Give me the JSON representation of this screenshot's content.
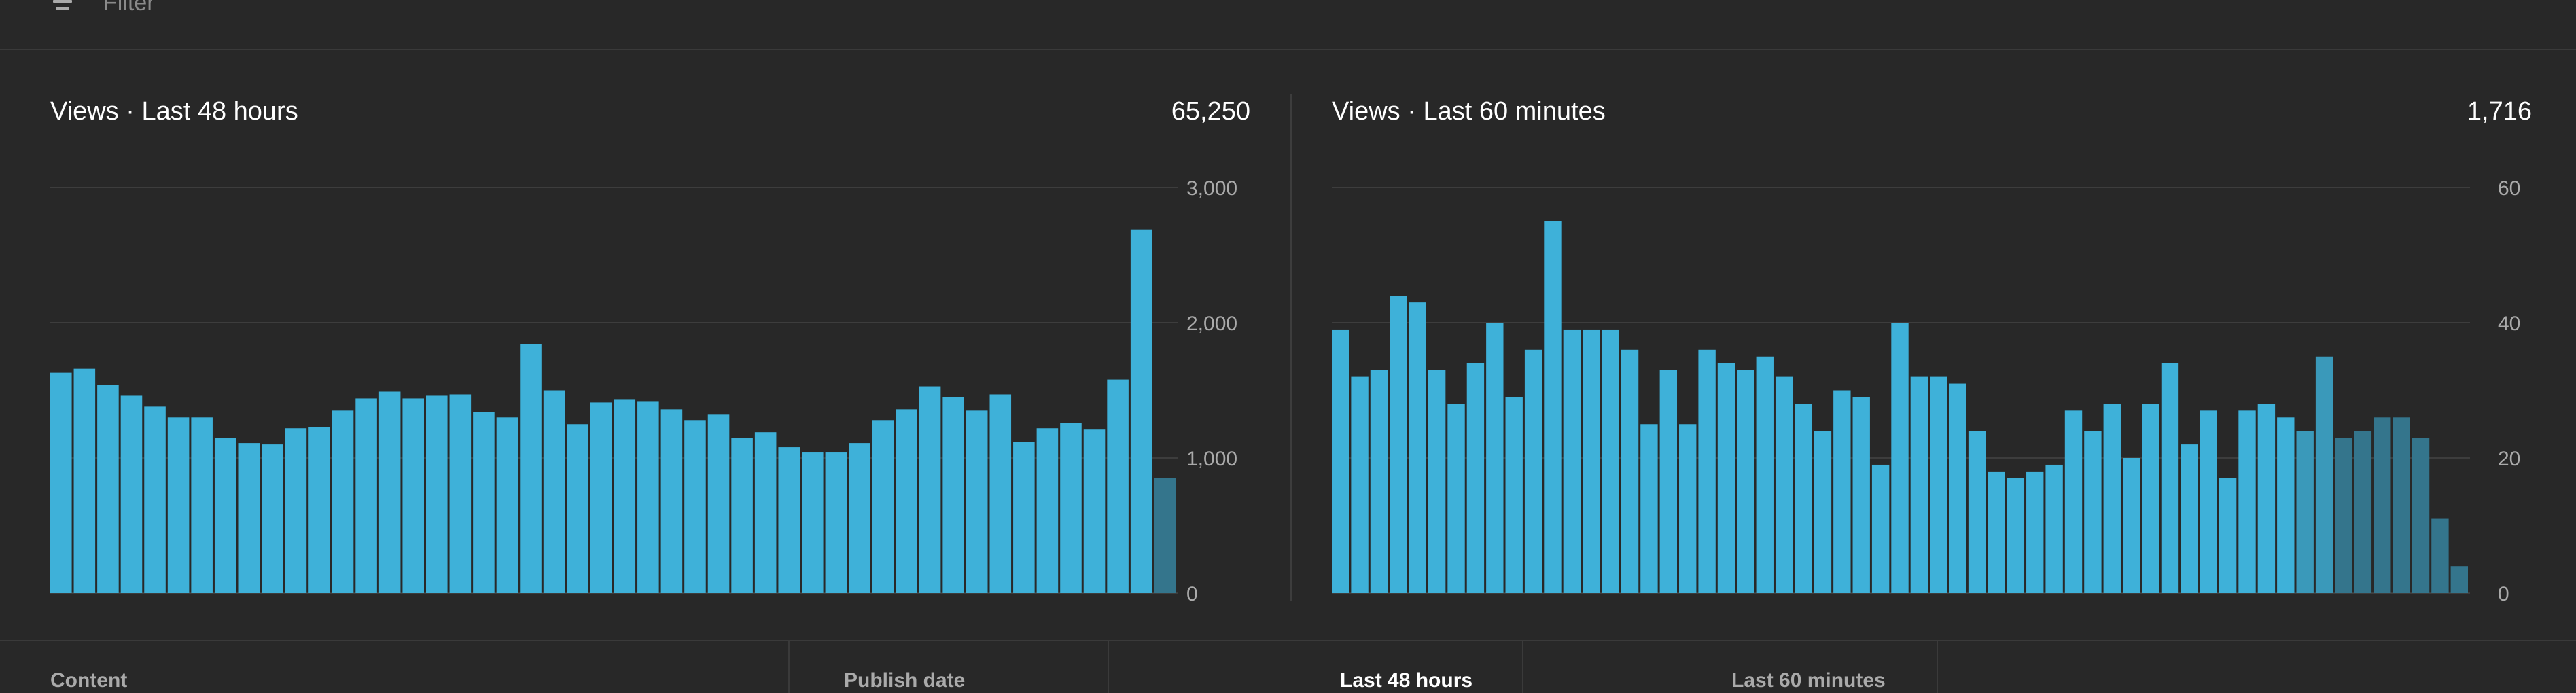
{
  "filter": {
    "placeholder": "Filter",
    "icon": "filter-lines-icon"
  },
  "panels": [
    {
      "title": "Views · Last 48 hours",
      "total": "65,250"
    },
    {
      "title": "Views · Last 60 minutes",
      "total": "1,716"
    }
  ],
  "colors": {
    "background": "#282828",
    "bar": "#3eb1d9",
    "bar_partial": "#34758c",
    "gridline": "#3d3d3d",
    "tick_text": "#aaaaaa"
  },
  "chart_data": [
    {
      "type": "bar",
      "title": "Views · Last 48 hours",
      "xlabel": "",
      "ylabel": "",
      "ylim": [
        0,
        3000
      ],
      "yticks": [
        0,
        1000,
        2000,
        3000
      ],
      "ytick_labels": [
        "0",
        "1,000",
        "2,000",
        "3,000"
      ],
      "grid": true,
      "values": [
        1630,
        1660,
        1540,
        1460,
        1380,
        1300,
        1300,
        1150,
        1110,
        1100,
        1220,
        1230,
        1350,
        1440,
        1490,
        1440,
        1460,
        1470,
        1340,
        1300,
        1840,
        1500,
        1250,
        1410,
        1430,
        1420,
        1360,
        1280,
        1320,
        1150,
        1190,
        1080,
        1040,
        1040,
        1110,
        1280,
        1360,
        1530,
        1450,
        1350,
        1470,
        1120,
        1220,
        1260,
        1210,
        1580,
        2690,
        850
      ],
      "partial_last": true
    },
    {
      "type": "bar",
      "title": "Views · Last 60 minutes",
      "xlabel": "",
      "ylabel": "",
      "ylim": [
        0,
        60
      ],
      "yticks": [
        0,
        20,
        40,
        60
      ],
      "ytick_labels": [
        "0",
        "20",
        "40",
        "60"
      ],
      "grid": true,
      "values": [
        39,
        32,
        33,
        44,
        43,
        33,
        28,
        34,
        40,
        29,
        36,
        55,
        39,
        39,
        39,
        36,
        25,
        33,
        25,
        36,
        34,
        33,
        35,
        32,
        28,
        24,
        30,
        29,
        19,
        40,
        32,
        32,
        31,
        24,
        18,
        17,
        18,
        19,
        27,
        24,
        28,
        20,
        28,
        34,
        22,
        27,
        17,
        27,
        28,
        26,
        24,
        35,
        23,
        24,
        26,
        26,
        23,
        11,
        4
      ],
      "partial_from_index": 50
    }
  ],
  "table": {
    "columns": [
      {
        "label": "Content",
        "active": false
      },
      {
        "label": "Publish date",
        "active": false
      },
      {
        "label": "Last 48 hours",
        "active": true
      },
      {
        "label": "Last 60 minutes",
        "active": false
      }
    ]
  }
}
